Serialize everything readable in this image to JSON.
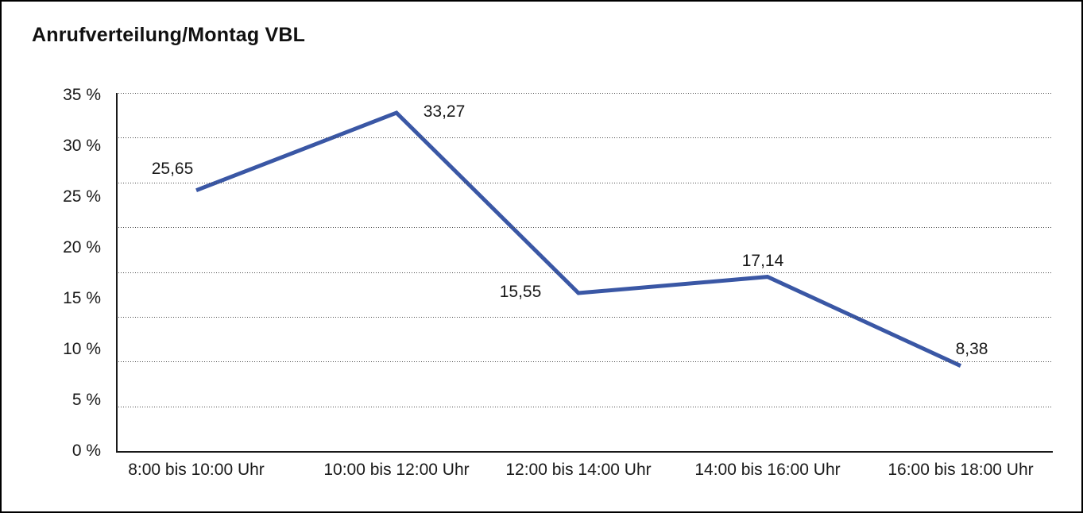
{
  "window": {
    "background_color": "#ffffff",
    "border_color": "#000000"
  },
  "chart_data": {
    "type": "line",
    "title": "Anrufverteilung/Montag VBL",
    "categories": [
      "8:00 bis 10:00 Uhr",
      "10:00 bis 12:00 Uhr",
      "12:00 bis 14:00 Uhr",
      "14:00 bis 16:00 Uhr",
      "16:00 bis 18:00 Uhr"
    ],
    "values": [
      25.65,
      33.27,
      15.55,
      17.14,
      8.38
    ],
    "value_labels": [
      "25,65",
      "33,27",
      "15,55",
      "17,14",
      "8,38"
    ],
    "yticks": [
      "35 %",
      "30 %",
      "25 %",
      "20 %",
      "15 %",
      "10 %",
      "5 %",
      "0 %"
    ],
    "ylim": [
      0,
      35
    ],
    "xlabel": "",
    "ylabel": "",
    "grid": "horizontal-dotted",
    "gridline_levels": 9,
    "legend": "none",
    "line_color": "#3A57A5",
    "line_width": 5,
    "decimal_separator": ","
  }
}
